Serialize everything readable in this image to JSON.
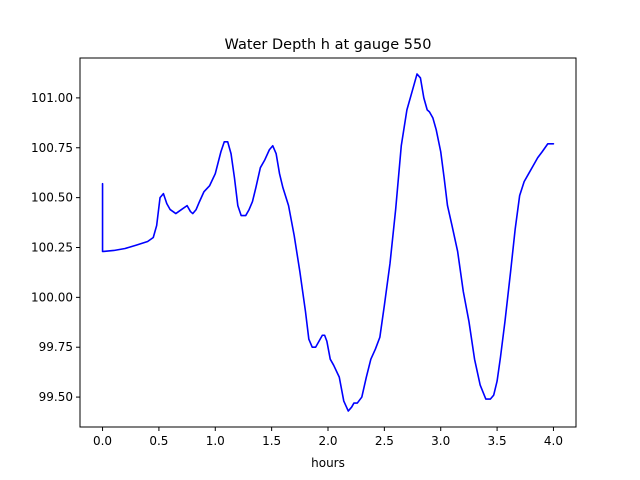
{
  "chart_data": {
    "type": "line",
    "title": "Water Depth h at gauge 550",
    "xlabel": "hours",
    "ylabel": "",
    "xlim": [
      -0.2,
      4.2
    ],
    "ylim": [
      99.35,
      101.2
    ],
    "xticks": [
      0.0,
      0.5,
      1.0,
      1.5,
      2.0,
      2.5,
      3.0,
      3.5,
      4.0
    ],
    "xtick_labels": [
      "0.0",
      "0.5",
      "1.0",
      "1.5",
      "2.0",
      "2.5",
      "3.0",
      "3.5",
      "4.0"
    ],
    "yticks": [
      99.5,
      99.75,
      100.0,
      100.25,
      100.5,
      100.75,
      101.0
    ],
    "ytick_labels": [
      "99.50",
      "99.75",
      "100.00",
      "100.25",
      "100.50",
      "100.75",
      "101.00"
    ],
    "grid": false,
    "legend": "none",
    "series": [
      {
        "color": "#0000ff",
        "x": [
          0.0,
          0.0,
          0.01,
          0.1,
          0.2,
          0.3,
          0.4,
          0.45,
          0.48,
          0.51,
          0.54,
          0.57,
          0.6,
          0.65,
          0.7,
          0.75,
          0.78,
          0.8,
          0.83,
          0.86,
          0.9,
          0.95,
          1.0,
          1.05,
          1.08,
          1.11,
          1.14,
          1.17,
          1.2,
          1.23,
          1.27,
          1.3,
          1.33,
          1.36,
          1.4,
          1.44,
          1.48,
          1.51,
          1.54,
          1.57,
          1.6,
          1.65,
          1.7,
          1.75,
          1.8,
          1.83,
          1.86,
          1.89,
          1.92,
          1.95,
          1.97,
          1.99,
          2.02,
          2.05,
          2.1,
          2.14,
          2.18,
          2.21,
          2.23,
          2.26,
          2.3,
          2.34,
          2.38,
          2.42,
          2.46,
          2.5,
          2.55,
          2.6,
          2.65,
          2.7,
          2.75,
          2.79,
          2.82,
          2.85,
          2.88,
          2.9,
          2.93,
          2.96,
          3.0,
          3.03,
          3.06,
          3.1,
          3.15,
          3.2,
          3.25,
          3.3,
          3.35,
          3.4,
          3.44,
          3.47,
          3.5,
          3.53,
          3.57,
          3.62,
          3.66,
          3.7,
          3.74,
          3.78,
          3.82,
          3.86,
          3.9,
          3.95,
          4.0
        ],
        "y": [
          100.57,
          100.23,
          100.23,
          100.235,
          100.245,
          100.262,
          100.28,
          100.3,
          100.36,
          100.5,
          100.52,
          100.47,
          100.44,
          100.42,
          100.44,
          100.46,
          100.43,
          100.42,
          100.44,
          100.48,
          100.53,
          100.56,
          100.62,
          100.73,
          100.78,
          100.78,
          100.72,
          100.6,
          100.46,
          100.41,
          100.41,
          100.44,
          100.48,
          100.55,
          100.65,
          100.69,
          100.74,
          100.76,
          100.72,
          100.62,
          100.55,
          100.46,
          100.31,
          100.13,
          99.93,
          99.79,
          99.75,
          99.75,
          99.78,
          99.81,
          99.81,
          99.78,
          99.69,
          99.66,
          99.6,
          99.48,
          99.43,
          99.45,
          99.47,
          99.47,
          99.5,
          99.6,
          99.69,
          99.74,
          99.8,
          99.96,
          100.17,
          100.44,
          100.76,
          100.94,
          101.04,
          101.12,
          101.1,
          101.0,
          100.94,
          100.93,
          100.9,
          100.84,
          100.73,
          100.6,
          100.46,
          100.36,
          100.23,
          100.03,
          99.88,
          99.69,
          99.56,
          99.49,
          99.49,
          99.51,
          99.58,
          99.7,
          99.88,
          100.13,
          100.34,
          100.51,
          100.58,
          100.62,
          100.66,
          100.7,
          100.73,
          100.77,
          100.77
        ]
      }
    ]
  }
}
